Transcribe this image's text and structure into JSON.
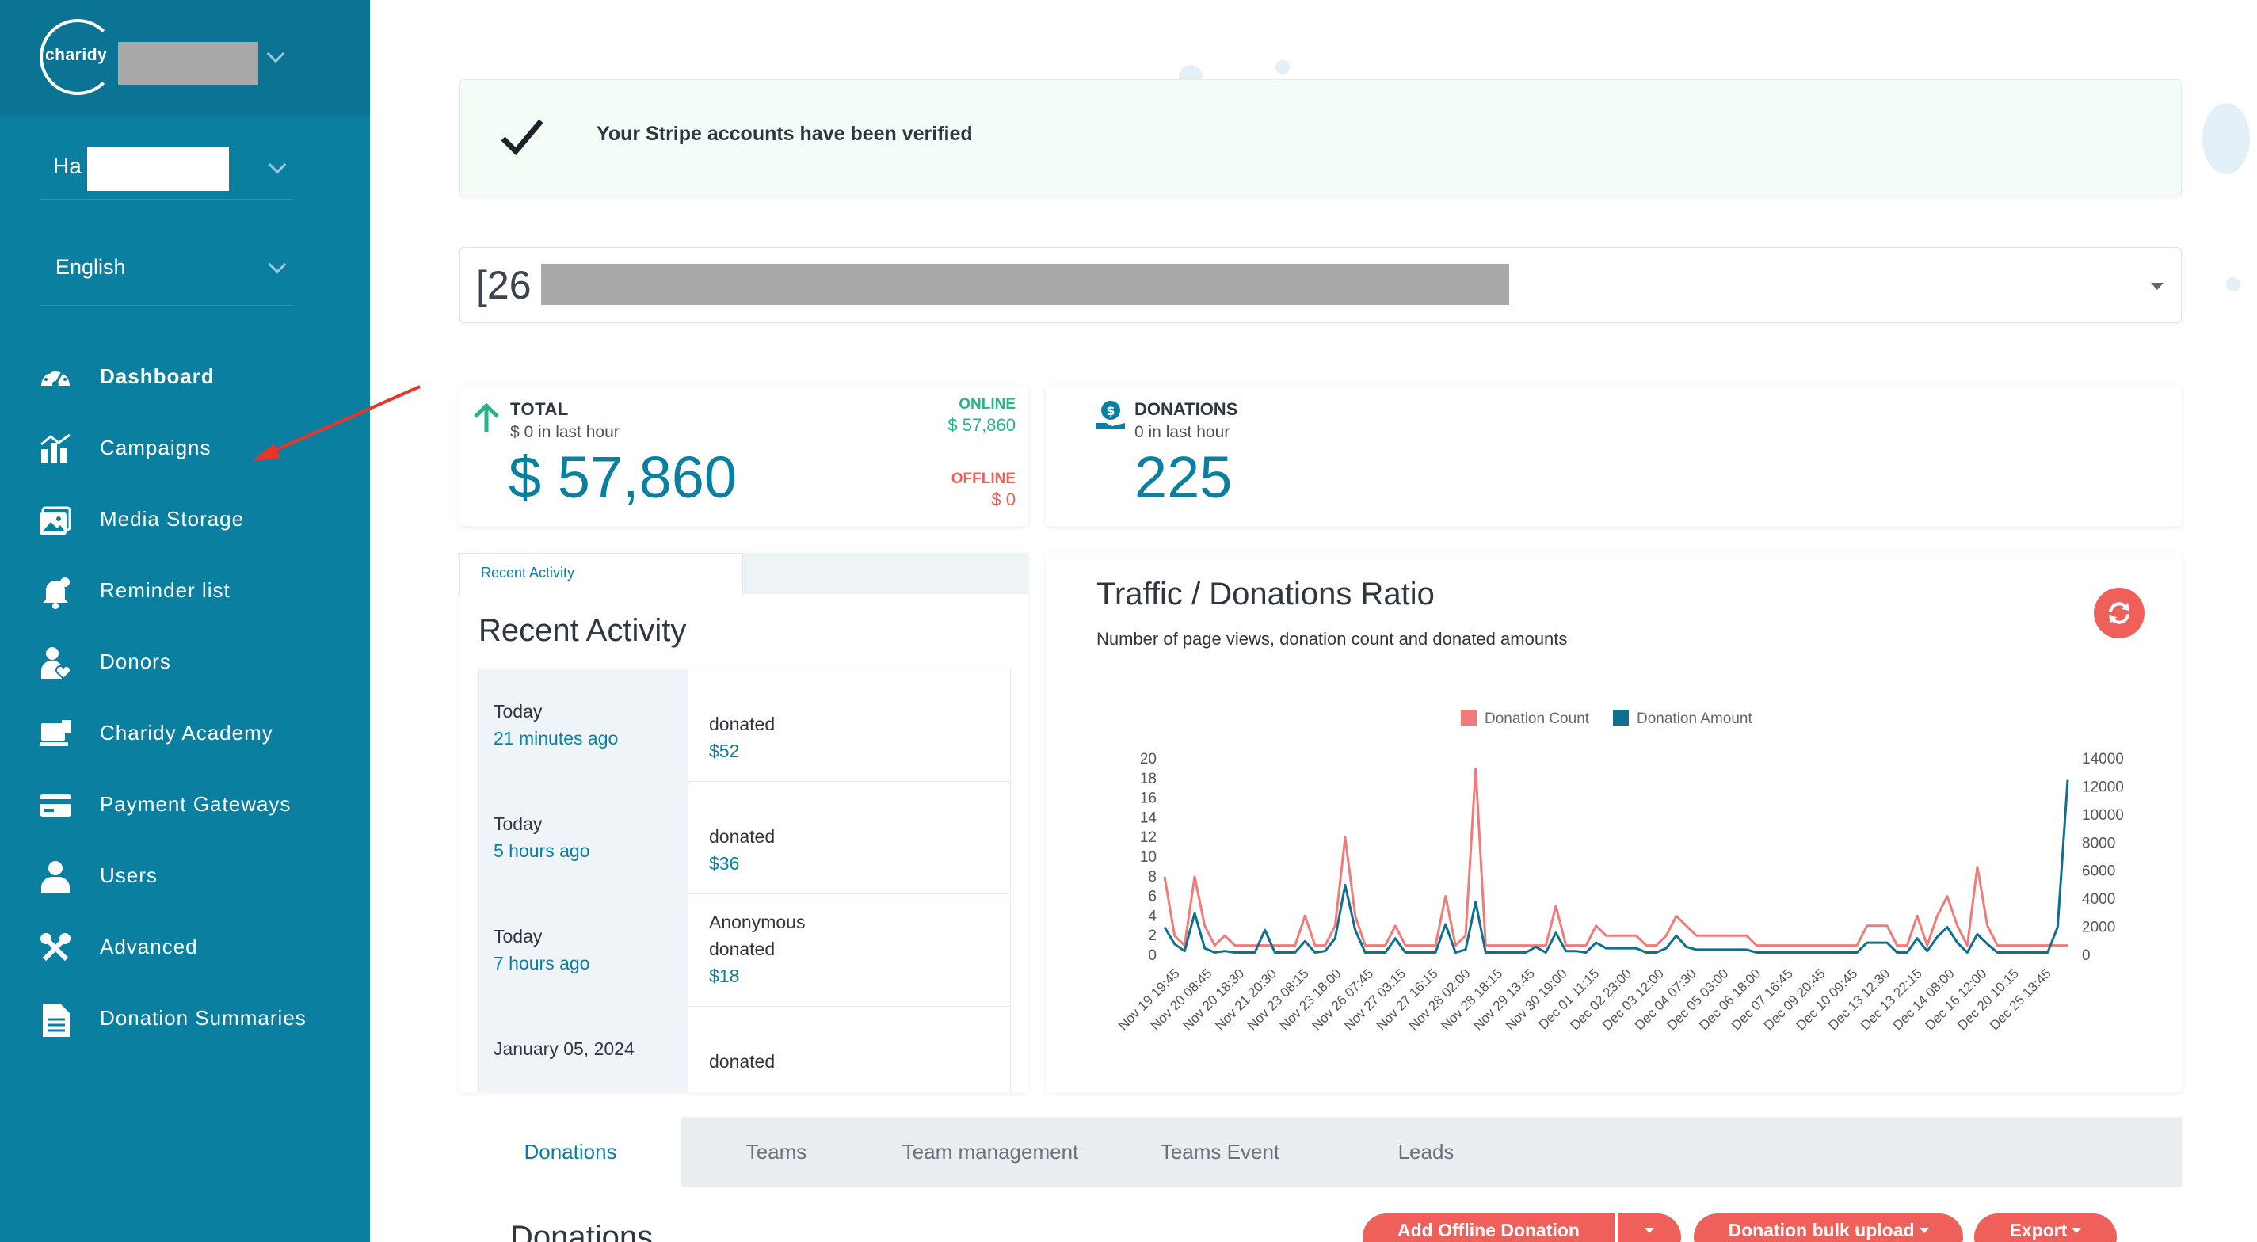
{
  "sidebar": {
    "logo_text": "charidy",
    "org_prefix": "Ha",
    "language": "English",
    "items": [
      {
        "label": "Dashboard",
        "icon": "speedometer-icon",
        "active": true
      },
      {
        "label": "Campaigns",
        "icon": "chart-building-icon"
      },
      {
        "label": "Media Storage",
        "icon": "image-gallery-icon"
      },
      {
        "label": "Reminder list",
        "icon": "bell-icon"
      },
      {
        "label": "Donors",
        "icon": "donor-heart-icon"
      },
      {
        "label": "Charidy Academy",
        "icon": "laptop-academy-icon"
      },
      {
        "label": "Payment Gateways",
        "icon": "credit-card-icon"
      },
      {
        "label": "Users",
        "icon": "user-icon"
      },
      {
        "label": "Advanced",
        "icon": "tools-icon"
      },
      {
        "label": "Donation Summaries",
        "icon": "document-icon"
      }
    ]
  },
  "alert": {
    "text": "Your Stripe accounts have been verified"
  },
  "campaign_select": {
    "prefix": "[26"
  },
  "total": {
    "label": "TOTAL",
    "sub": "$ 0 in last hour",
    "value": "$ 57,860",
    "online_label": "ONLINE",
    "online_value": "$ 57,860",
    "offline_label": "OFFLINE",
    "offline_value": "$ 0"
  },
  "donations": {
    "label": "DONATIONS",
    "sub": "0 in last hour",
    "value": "225"
  },
  "activity": {
    "tab": "Recent Activity",
    "title": "Recent Activity",
    "rows": [
      {
        "day": "Today",
        "ago": "21 minutes ago",
        "name": "",
        "action": "donated",
        "amount": "$52"
      },
      {
        "day": "Today",
        "ago": "5 hours ago",
        "name": "",
        "action": "donated",
        "amount": "$36"
      },
      {
        "day": "Today",
        "ago": "7 hours ago",
        "name": "Anonymous",
        "action": "donated",
        "amount": "$18"
      },
      {
        "day": "January 05, 2024",
        "ago": "",
        "name": "",
        "action": "donated",
        "amount": ""
      }
    ]
  },
  "chart_data": {
    "type": "line",
    "title": "Traffic / Donations Ratio",
    "subtitle": "Number of page views, donation count and donated amounts",
    "legend_position": "top-center",
    "x_tick_labels": [
      "Nov 19 19:45",
      "Nov 20 08:45",
      "Nov 20 18:30",
      "Nov 21 20:30",
      "Nov 23 08:15",
      "Nov 23 18:00",
      "Nov 26 07:45",
      "Nov 27 03:15",
      "Nov 27 16:15",
      "Nov 28 02:00",
      "Nov 28 18:15",
      "Nov 29 13:45",
      "Nov 30 19:00",
      "Dec 01 11:15",
      "Dec 02 23:00",
      "Dec 03 12:00",
      "Dec 04 07:30",
      "Dec 05 03:00",
      "Dec 06 18:00",
      "Dec 07 16:45",
      "Dec 09 20:45",
      "Dec 10 09:45",
      "Dec 13 12:30",
      "Dec 13 22:15",
      "Dec 14 08:00",
      "Dec 16 12:00",
      "Dec 20 10:15",
      "Dec 25 13:45"
    ],
    "y_left": {
      "min": 0,
      "max": 20,
      "ticks": [
        0,
        2,
        4,
        6,
        8,
        10,
        12,
        14,
        16,
        18,
        20
      ]
    },
    "y_right": {
      "min": 0,
      "max": 14000,
      "ticks": [
        0,
        2000,
        4000,
        6000,
        8000,
        10000,
        12000,
        14000
      ]
    },
    "series": [
      {
        "name": "Donation Count",
        "color": "#f07b79",
        "axis": "left",
        "values": [
          8,
          2,
          1,
          8,
          3,
          1,
          2,
          1,
          1,
          1,
          1,
          1,
          1,
          1,
          4,
          1,
          1,
          3,
          12,
          4,
          1,
          1,
          1,
          3,
          1,
          1,
          1,
          1,
          6,
          1,
          2,
          19,
          1,
          1,
          1,
          1,
          1,
          1,
          1,
          5,
          1,
          1,
          1,
          3,
          2,
          2,
          2,
          2,
          1,
          1,
          2,
          4,
          3,
          2,
          2,
          2,
          2,
          2,
          2,
          1,
          1,
          1,
          1,
          1,
          1,
          1,
          1,
          1,
          1,
          1,
          3,
          3,
          3,
          1,
          1,
          4,
          1,
          4,
          6,
          3,
          1,
          9,
          3,
          1,
          1,
          1,
          1,
          1,
          1,
          1,
          1
        ]
      },
      {
        "name": "Donation Amount",
        "color": "#0e6f8e",
        "axis": "right",
        "values": [
          2000,
          800,
          300,
          3000,
          500,
          200,
          300,
          200,
          200,
          200,
          1800,
          200,
          200,
          200,
          1000,
          200,
          300,
          1200,
          5000,
          1800,
          200,
          200,
          200,
          1200,
          200,
          200,
          200,
          200,
          2200,
          200,
          400,
          3800,
          200,
          200,
          200,
          200,
          200,
          600,
          200,
          1600,
          300,
          300,
          200,
          900,
          500,
          500,
          500,
          500,
          200,
          200,
          500,
          1400,
          600,
          400,
          400,
          400,
          400,
          400,
          400,
          200,
          200,
          200,
          200,
          200,
          200,
          200,
          200,
          200,
          200,
          200,
          900,
          900,
          900,
          200,
          200,
          1200,
          300,
          1300,
          2000,
          900,
          200,
          1500,
          800,
          200,
          200,
          200,
          200,
          200,
          200,
          2000,
          12500
        ]
      }
    ]
  },
  "tabs": [
    {
      "label": "Donations",
      "active": true
    },
    {
      "label": "Teams"
    },
    {
      "label": "Team management"
    },
    {
      "label": "Teams Event"
    },
    {
      "label": "Leads"
    }
  ],
  "tab_content": {
    "title": "Donations",
    "add_offline": "Add Offline Donation",
    "bulk_upload": "Donation bulk upload",
    "export": "Export"
  },
  "colors": {
    "sidebar": "#0a7fa0",
    "accent": "#0a7fa0",
    "coral": "#f0605a",
    "green": "#26b48a"
  }
}
